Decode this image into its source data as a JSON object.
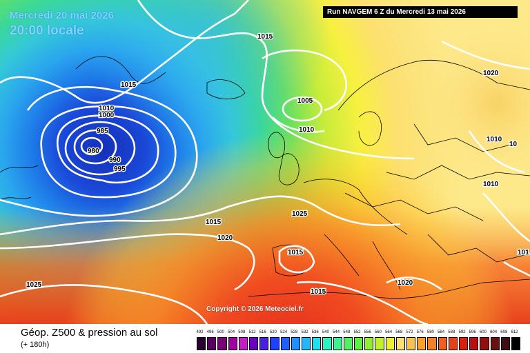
{
  "map": {
    "valid_date": "Mercredi 20 mai 2026",
    "valid_time": "20:00 locale",
    "run_info": "Run NAVGEM 6 Z du Mercredi 13 mai 2026",
    "copyright": "Copyright © 2026 Meteociel.fr",
    "isobar_labels": [
      "980",
      "985",
      "990",
      "995",
      "1000",
      "1010",
      "1015",
      "1015",
      "1005",
      "1010",
      "1020",
      "1010",
      "10",
      "1010",
      "1025",
      "1015",
      "1020",
      "1015",
      "1025",
      "1020",
      "1015",
      "101"
    ]
  },
  "footer": {
    "title": "Géop. Z500 & pression au sol",
    "offset": "(+ 180h)"
  },
  "legend": {
    "ticks": [
      "492",
      "496",
      "500",
      "504",
      "508",
      "512",
      "516",
      "520",
      "524",
      "528",
      "532",
      "536",
      "540",
      "544",
      "548",
      "552",
      "556",
      "560",
      "564",
      "568",
      "572",
      "576",
      "580",
      "584",
      "588",
      "592",
      "596",
      "600",
      "604",
      "608",
      "612"
    ],
    "colors": [
      "#2a0030",
      "#5a0060",
      "#7a007a",
      "#a000a0",
      "#c020c0",
      "#6a00c0",
      "#4a20e0",
      "#2040ff",
      "#2060ff",
      "#2090ff",
      "#20b8ff",
      "#20e0f0",
      "#30f0c0",
      "#40f090",
      "#50f060",
      "#60f040",
      "#90f030",
      "#c0f030",
      "#f0f030",
      "#fce070",
      "#fcc050",
      "#f8a030",
      "#f48028",
      "#f06020",
      "#e84018",
      "#d82010",
      "#b81010",
      "#901010",
      "#6a1010",
      "#401010",
      "#000000"
    ]
  }
}
